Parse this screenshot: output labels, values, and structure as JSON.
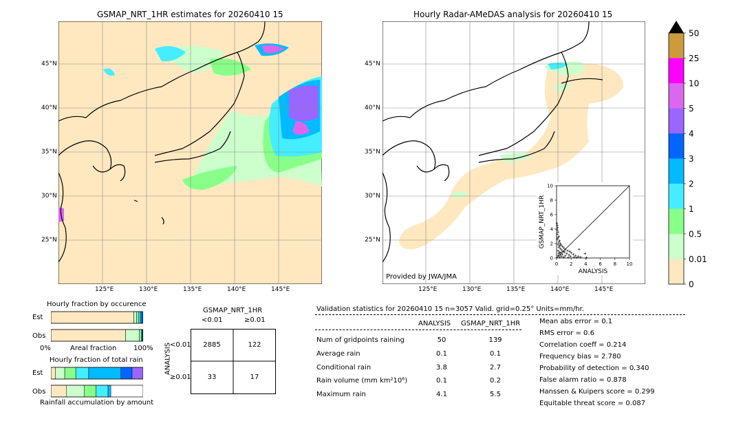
{
  "left_map": {
    "title": "GSMAP_NRT_1HR estimates for 20260410 15",
    "lat_labels": [
      "45°N",
      "40°N",
      "35°N",
      "30°N",
      "25°N"
    ],
    "lon_labels": [
      "125°E",
      "130°E",
      "135°E",
      "140°E",
      "145°E"
    ]
  },
  "right_map": {
    "title": "Hourly Radar-AMeDAS analysis for 20260410 15",
    "lat_labels": [
      "45°N",
      "40°N",
      "35°N",
      "30°N",
      "25°N"
    ],
    "lon_labels": [
      "125°E",
      "130°E",
      "135°E",
      "140°E",
      "145°E"
    ],
    "credit": "Provided by JWA/JMA"
  },
  "colorbar": {
    "ticks": [
      "50",
      "25",
      "10",
      "5",
      "4",
      "3",
      "2",
      "1",
      "0.5",
      "0.01",
      "0"
    ],
    "colors": [
      "#cd9b3d",
      "#ff00ff",
      "#dd66ee",
      "#9966ff",
      "#0066ff",
      "#00bbff",
      "#44eeff",
      "#88ff88",
      "#ccffcc",
      "#ffe8c0"
    ],
    "over_color": "#000000"
  },
  "occurrence": {
    "title": "Hourly fraction by occurence",
    "rows": [
      "Est",
      "Obs"
    ],
    "axis_left": "0%",
    "axis_mid": "Areal fraction",
    "axis_right": "100%"
  },
  "total_rain": {
    "title": "Hourly fraction of total rain",
    "rows": [
      "Est",
      "Obs"
    ],
    "footer": "Rainfall accumulation by amount"
  },
  "contingency": {
    "title": "GSMAP_NRT_1HR",
    "col_lt": "<0.01",
    "col_ge": "≥0.01",
    "row_axis": "ANALYSIS",
    "row_lt": "<0.01",
    "row_ge": "≥0.01",
    "cells": [
      "2885",
      "122",
      "33",
      "17"
    ]
  },
  "validation": {
    "header": "Validation statistics for 20260410 15  n=3057 Valid. grid=0.25° Units=mm/hr.",
    "col_analysis": "ANALYSIS",
    "col_gsmap": "GSMAP_NRT_1HR",
    "rows": [
      {
        "label": "Num of gridpoints raining",
        "analysis": "50",
        "gsmap": "139"
      },
      {
        "label": "Average rain",
        "analysis": "0.1",
        "gsmap": "0.1"
      },
      {
        "label": "Conditional rain",
        "analysis": "3.8",
        "gsmap": "2.7"
      },
      {
        "label": "Rain volume (mm km²10⁶)",
        "analysis": "0.1",
        "gsmap": "0.2"
      },
      {
        "label": "Maximum rain",
        "analysis": "4.1",
        "gsmap": "5.5"
      }
    ],
    "scores": [
      "Mean abs error =    0.1",
      "RMS error =    0.6",
      "Correlation coeff =  0.214",
      "Frequency bias =  2.780",
      "Probability of detection =  0.340",
      "False alarm ratio =  0.878",
      "Hanssen & Kuipers score =  0.299",
      "Equitable threat score =  0.087"
    ]
  },
  "chart_data": [
    {
      "type": "scatter",
      "title": "",
      "xlabel": "ANALYSIS",
      "ylabel": "GSMAP_NRT_1HR",
      "xlim": [
        0,
        10
      ],
      "ylim": [
        0,
        10
      ],
      "xticks": [
        "0",
        "2",
        "4",
        "6",
        "8",
        "10"
      ],
      "yticks": [
        "0",
        "2",
        "4",
        "6",
        "8",
        "10"
      ],
      "diagonal": true,
      "points": [
        [
          0.05,
          4.8
        ],
        [
          0.1,
          4.5
        ],
        [
          0.15,
          4.2
        ],
        [
          0.1,
          3.9
        ],
        [
          0.2,
          3.6
        ],
        [
          0.1,
          3.3
        ],
        [
          0.3,
          3.0
        ],
        [
          0.2,
          2.8
        ],
        [
          0.1,
          2.6
        ],
        [
          0.4,
          2.4
        ],
        [
          0.3,
          2.2
        ],
        [
          0.5,
          2.0
        ],
        [
          0.2,
          1.9
        ],
        [
          0.6,
          1.8
        ],
        [
          0.4,
          1.7
        ],
        [
          0.8,
          1.6
        ],
        [
          0.3,
          1.5
        ],
        [
          1.0,
          1.4
        ],
        [
          0.5,
          1.3
        ],
        [
          1.2,
          1.2
        ],
        [
          0.7,
          1.1
        ],
        [
          1.5,
          1.0
        ],
        [
          0.2,
          1.0
        ],
        [
          0.9,
          0.9
        ],
        [
          1.8,
          0.9
        ],
        [
          0.4,
          0.8
        ],
        [
          1.1,
          0.8
        ],
        [
          2.0,
          0.7
        ],
        [
          0.6,
          0.7
        ],
        [
          1.4,
          0.6
        ],
        [
          0.3,
          0.6
        ],
        [
          2.3,
          0.5
        ],
        [
          0.8,
          0.5
        ],
        [
          1.7,
          0.4
        ],
        [
          0.5,
          0.4
        ],
        [
          2.6,
          0.3
        ],
        [
          1.2,
          0.3
        ],
        [
          0.2,
          0.3
        ],
        [
          3.0,
          0.2
        ],
        [
          1.9,
          0.2
        ],
        [
          0.7,
          0.2
        ],
        [
          2.4,
          0.1
        ],
        [
          1.0,
          0.1
        ],
        [
          3.3,
          0.1
        ],
        [
          0.4,
          0.1
        ],
        [
          3.9,
          0.6
        ],
        [
          3.1,
          1.2
        ],
        [
          2.8,
          0.05
        ],
        [
          1.6,
          0.05
        ],
        [
          4.1,
          0.05
        ]
      ]
    },
    {
      "type": "bar",
      "title": "Hourly fraction by occurence",
      "categories": [
        "Est",
        "Obs"
      ],
      "series": [
        {
          "values": [
            0.9,
            0.81
          ]
        },
        {
          "values": [
            0.03,
            0.15
          ]
        },
        {
          "values": [
            0.02,
            0.02
          ]
        },
        {
          "values": [
            0.02,
            0.01
          ]
        },
        {
          "values": [
            0.015,
            0.005
          ]
        },
        {
          "values": [
            0.015,
            0.005
          ]
        }
      ],
      "series_colors": [
        "#ffe8c0",
        "#ccffcc",
        "#88ff88",
        "#44eeff",
        "#00bbff",
        "#0066ff"
      ]
    },
    {
      "type": "bar",
      "title": "Hourly fraction of total rain",
      "categories": [
        "Est",
        "Obs"
      ],
      "series": [
        {
          "values": [
            0.05,
            0.17
          ]
        },
        {
          "values": [
            0.1,
            0.19
          ]
        },
        {
          "values": [
            0.12,
            0.13
          ]
        },
        {
          "values": [
            0.14,
            0.13
          ]
        },
        {
          "values": [
            0.35,
            0.03
          ]
        },
        {
          "values": [
            0.12,
            0.0
          ]
        },
        {
          "values": [
            0.12,
            0.0
          ]
        }
      ],
      "series_colors": [
        "#ffe8c0",
        "#ccffcc",
        "#88ff88",
        "#44eeff",
        "#00bbff",
        "#0066ff",
        "#9966ff"
      ],
      "xlim": [
        0,
        1
      ]
    }
  ]
}
